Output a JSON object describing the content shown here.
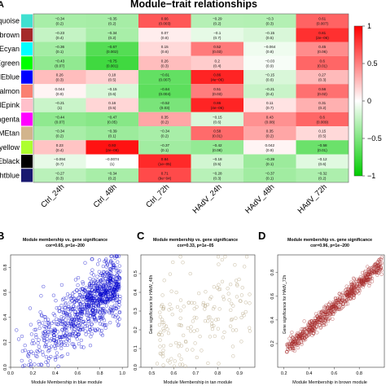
{
  "figure": {
    "panel_labels": {
      "a": "A",
      "b": "B",
      "c": "C",
      "d": "D"
    }
  },
  "chart_data": [
    {
      "type": "heatmap",
      "panel": "A",
      "title": "Module−trait relationships",
      "columns": [
        "Ctrl_24h",
        "Ctrl_48h",
        "Ctrl_72h",
        "HAdV_24h",
        "HAdV_48h",
        "HAdV_72h"
      ],
      "rows": [
        {
          "name": "MEturquoise",
          "color": "#40e0d0",
          "r": [
            -0.34,
            -0.35,
            0.66,
            -0.29,
            -0.3,
            0.61
          ],
          "p": [
            "(0.2)",
            "(0.2)",
            "(0.003)",
            "(0.2)",
            "(0.3)",
            "(0.007)"
          ]
        },
        {
          "name": "MEbrown",
          "color": "#a52a2a",
          "r": [
            -0.23,
            -0.34,
            0.07,
            -0.1,
            -0.15,
            0.81
          ],
          "p": [
            "(0.4)",
            "(0.2)",
            "(0.8)",
            "(0.7)",
            "(0.5)",
            "(2e−06)"
          ]
        },
        {
          "name": "MEcyan",
          "color": "#00ffff",
          "r": [
            -0.36,
            -0.67,
            0.15,
            0.52,
            -0.064,
            0.45
          ],
          "p": [
            "(0.1)",
            "(0.002)",
            "(0.6)",
            "(0.03)",
            "(0.8)",
            "(0.06)"
          ]
        },
        {
          "name": "MEgreen",
          "color": "#00ff00",
          "r": [
            -0.43,
            -0.75,
            0.26,
            0.2,
            -0.03,
            0.6
          ],
          "p": [
            "(0.07)",
            "(0.001)",
            "(0.3)",
            "(0.4)",
            "(0.9)",
            "(0.01)"
          ]
        },
        {
          "name": "MEblue",
          "color": "#0000ff",
          "r": [
            0.26,
            0.18,
            -0.61,
            0.86,
            -0.15,
            0.27
          ],
          "p": [
            "(0.3)",
            "(0.5)",
            "(0.007)",
            "(4e−06)",
            "(0.6)",
            "(0.3)"
          ]
        },
        {
          "name": "MEsalmon",
          "color": "#fa8072",
          "r": [
            0.044,
            -0.15,
            -0.64,
            0.51,
            -0.21,
            0.56
          ],
          "p": [
            "(0.9)",
            "(0.6)",
            "(0.004)",
            "(0.03)",
            "(0.4)",
            "(0.02)"
          ]
        },
        {
          "name": "MEpink",
          "color": "#ffc0cb",
          "r": [
            -0.21,
            0.16,
            -0.52,
            0.86,
            0.11,
            0.31
          ],
          "p": [
            "(1)",
            "(0.5)",
            "(0.03)",
            "(4e−06)",
            "(0.7)",
            "(0.2)"
          ]
        },
        {
          "name": "MEmagenta",
          "color": "#ff00ff",
          "r": [
            -0.44,
            -0.47,
            0.35,
            -0.15,
            0.43,
            0.6
          ],
          "p": [
            "(0.07)",
            "(0.05)",
            "(0.2)",
            "(0.6)",
            "(0.08)",
            "(0.009)"
          ]
        },
        {
          "name": "MEtan",
          "color": "#d2b48c",
          "r": [
            -0.34,
            -0.39,
            -0.34,
            0.58,
            0.35,
            0.15
          ],
          "p": [
            "(0.2)",
            "(0.1)",
            "(0.2)",
            "(0.01)",
            "(0.2)",
            "(0.5)"
          ]
        },
        {
          "name": "MEgreenyellow",
          "color": "#adff2f",
          "r": [
            0.23,
            0.93,
            -0.37,
            -0.42,
            0.042,
            -0.58
          ],
          "p": [
            "(0.4)",
            "(2e−08)",
            "(0.1)",
            "(0.08)",
            "(0.9)",
            "(0.01)"
          ]
        },
        {
          "name": "MEblack",
          "color": "#000000",
          "r": [
            -0.094,
            -0.0074,
            0.84,
            -0.18,
            -0.39,
            -0.12
          ],
          "p": [
            "(0.7)",
            "(1)",
            "(1e−05)",
            "(0.5)",
            "(0.1)",
            "(0.6)"
          ]
        },
        {
          "name": "MEmidnightblue",
          "color": "#191970",
          "r": [
            -0.27,
            -0.34,
            0.71,
            -0.28,
            -0.37,
            -0.32
          ],
          "p": [
            "(0.3)",
            "(0.2)",
            "(9e−04)",
            "(0.3)",
            "(0.1)",
            "(0.2)"
          ]
        }
      ],
      "colorbar": {
        "ticks": [
          "1",
          "0.5",
          "0",
          "−0.5",
          "−1"
        ],
        "range": [
          -1,
          1
        ]
      },
      "colors": {
        "positive": "#ff0000",
        "neutral": "#ffffff",
        "negative": "#00cc00"
      }
    },
    {
      "type": "scatter",
      "panel": "B",
      "title": "Module membership vs. gene significance",
      "subtitle": "cor=0.65, p=1e−200",
      "xlabel": "Module Membership in blue module",
      "ylabel": "",
      "xlim": [
        0.0,
        1.05
      ],
      "ylim": [
        0.0,
        0.9
      ],
      "xticks": [
        "0.0",
        "0.2",
        "0.4",
        "0.6",
        "0.8",
        "1.0"
      ],
      "yticks": [
        "0.0",
        "0.2",
        "0.4",
        "0.6",
        "0.8"
      ],
      "color": "#0000cc",
      "trend": {
        "x_range": [
          0.05,
          0.98
        ],
        "slope": 0.68,
        "intercept": 0.02,
        "spread": 0.12,
        "n": 900
      }
    },
    {
      "type": "scatter",
      "panel": "C",
      "title": "Module membership vs. gene significance",
      "subtitle": "cor=0.33, p=1e−05",
      "xlabel": "Module Membership in tan module",
      "ylabel": "Gene significance for HAdV_48h",
      "xlim": [
        0.45,
        0.97
      ],
      "ylim": [
        0.0,
        0.6
      ],
      "xticks": [
        "0.5",
        "0.6",
        "0.7",
        "0.8",
        "0.9"
      ],
      "yticks": [
        "0.0",
        "0.1",
        "0.2",
        "0.3",
        "0.4",
        "0.5"
      ],
      "color": "#b8a988",
      "trend": {
        "x_range": [
          0.52,
          0.95
        ],
        "slope": 0.45,
        "intercept": -0.05,
        "spread": 0.13,
        "n": 170
      }
    },
    {
      "type": "scatter",
      "panel": "D",
      "title": "Module membership vs. gene significance",
      "subtitle": "cor=0.96, p=1e−200",
      "xlabel": "Module Membership in brown module",
      "ylabel": "Gene significance for HAdV_72h",
      "xlim": [
        0.15,
        1.0
      ],
      "ylim": [
        0.0,
        0.95
      ],
      "xticks": [
        "0.2",
        "0.4",
        "0.6",
        "0.8"
      ],
      "yticks": [
        "0.2",
        "0.4",
        "0.6",
        "0.8"
      ],
      "color": "#a52a2a",
      "trend": {
        "x_range": [
          0.22,
          0.98
        ],
        "slope": 0.95,
        "intercept": -0.06,
        "spread": 0.035,
        "n": 700
      }
    }
  ]
}
